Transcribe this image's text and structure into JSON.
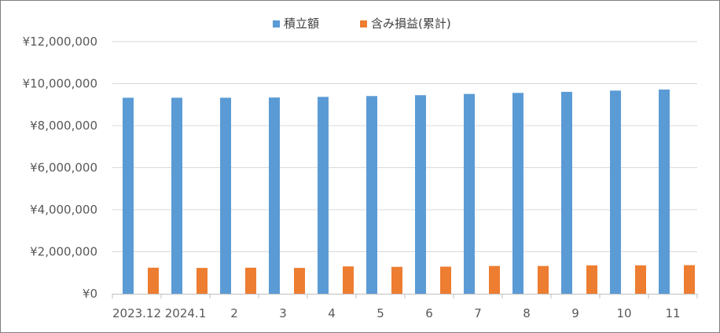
{
  "chart_data": {
    "type": "bar",
    "title": "",
    "xlabel": "",
    "ylabel": "",
    "categories": [
      "2023.12",
      "2024.1",
      "2",
      "3",
      "4",
      "5",
      "6",
      "7",
      "8",
      "9",
      "10",
      "11"
    ],
    "series": [
      {
        "name": "積立額",
        "color": "#5b9bd5",
        "values": [
          9330000,
          9330000,
          9330000,
          9340000,
          9370000,
          9410000,
          9450000,
          9510000,
          9560000,
          9610000,
          9670000,
          9720000
        ]
      },
      {
        "name": "含み損益(累計)",
        "color": "#ed7d31",
        "values": [
          1240000,
          1230000,
          1240000,
          1230000,
          1300000,
          1280000,
          1290000,
          1320000,
          1320000,
          1350000,
          1350000,
          1360000
        ]
      }
    ],
    "ylim": [
      0,
      12000000
    ],
    "y_ticks": [
      {
        "value": 0,
        "label": "¥0"
      },
      {
        "value": 2000000,
        "label": "¥2,000,000"
      },
      {
        "value": 4000000,
        "label": "¥4,000,000"
      },
      {
        "value": 6000000,
        "label": "¥6,000,000"
      },
      {
        "value": 8000000,
        "label": "¥8,000,000"
      },
      {
        "value": 10000000,
        "label": "¥10,000,000"
      },
      {
        "value": 12000000,
        "label": "¥12,000,000"
      }
    ],
    "grid": true,
    "legend_position": "top",
    "colors": {
      "gridline": "#d9d9d9",
      "axis": "#bfbfbf",
      "border": "#7f7f7f"
    }
  }
}
